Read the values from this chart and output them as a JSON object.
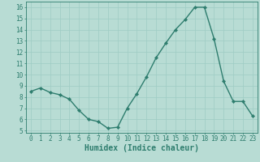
{
  "x": [
    0,
    1,
    2,
    3,
    4,
    5,
    6,
    7,
    8,
    9,
    10,
    11,
    12,
    13,
    14,
    15,
    16,
    17,
    18,
    19,
    20,
    21,
    22,
    23
  ],
  "y": [
    8.5,
    8.8,
    8.4,
    8.2,
    7.8,
    6.8,
    6.0,
    5.8,
    5.2,
    5.3,
    7.0,
    8.3,
    9.8,
    11.5,
    12.8,
    14.0,
    14.9,
    16.0,
    16.0,
    13.2,
    9.4,
    7.6,
    7.6,
    6.3
  ],
  "xlabel": "Humidex (Indice chaleur)",
  "xlim": [
    -0.5,
    23.5
  ],
  "ylim": [
    4.8,
    16.5
  ],
  "yticks": [
    5,
    6,
    7,
    8,
    9,
    10,
    11,
    12,
    13,
    14,
    15,
    16
  ],
  "xticks": [
    0,
    1,
    2,
    3,
    4,
    5,
    6,
    7,
    8,
    9,
    10,
    11,
    12,
    13,
    14,
    15,
    16,
    17,
    18,
    19,
    20,
    21,
    22,
    23
  ],
  "line_color": "#2e7d6e",
  "bg_color": "#b8dcd4",
  "grid_color": "#9eccc4",
  "marker": "D",
  "markersize": 2.2,
  "linewidth": 1.0,
  "tick_fontsize": 5.5,
  "xlabel_fontsize": 7.0
}
